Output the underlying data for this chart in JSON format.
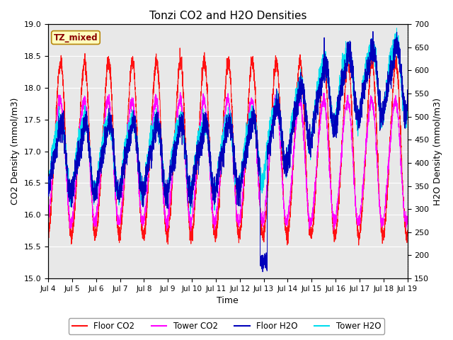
{
  "title": "Tonzi CO2 and H2O Densities",
  "xlabel": "Time",
  "ylabel_left": "CO2 Density (mmol/m3)",
  "ylabel_right": "H2O Density (mmol/m3)",
  "ylim_left": [
    15.0,
    19.0
  ],
  "ylim_right": [
    150,
    700
  ],
  "annotation_text": "TZ_mixed",
  "annotation_color": "#8B0000",
  "annotation_bg": "#FFFFC0",
  "annotation_border": "#B8860B",
  "colors": {
    "floor_co2": "#FF1111",
    "tower_co2": "#FF00FF",
    "floor_h2o": "#0000BB",
    "tower_h2o": "#00DDEE"
  },
  "legend_labels": [
    "Floor CO2",
    "Tower CO2",
    "Floor H2O",
    "Tower H2O"
  ],
  "x_tick_labels": [
    "Jul 4",
    "Jul 5",
    "Jul 6",
    "Jul 7",
    "Jul 8",
    "Jul 9",
    "Jul 10",
    "Jul 11",
    "Jul 12",
    "Jul 13",
    "Jul 14",
    "Jul 15",
    "Jul 16",
    "Jul 17",
    "Jul 18",
    "Jul 19"
  ],
  "yticks_left": [
    15.0,
    15.5,
    16.0,
    16.5,
    17.0,
    17.5,
    18.0,
    18.5,
    19.0
  ],
  "yticks_right": [
    150,
    200,
    250,
    300,
    350,
    400,
    450,
    500,
    550,
    600,
    650,
    700
  ],
  "background_color": "#E8E8E8",
  "grid_color": "#FFFFFF",
  "figsize": [
    6.4,
    4.8
  ],
  "dpi": 100
}
